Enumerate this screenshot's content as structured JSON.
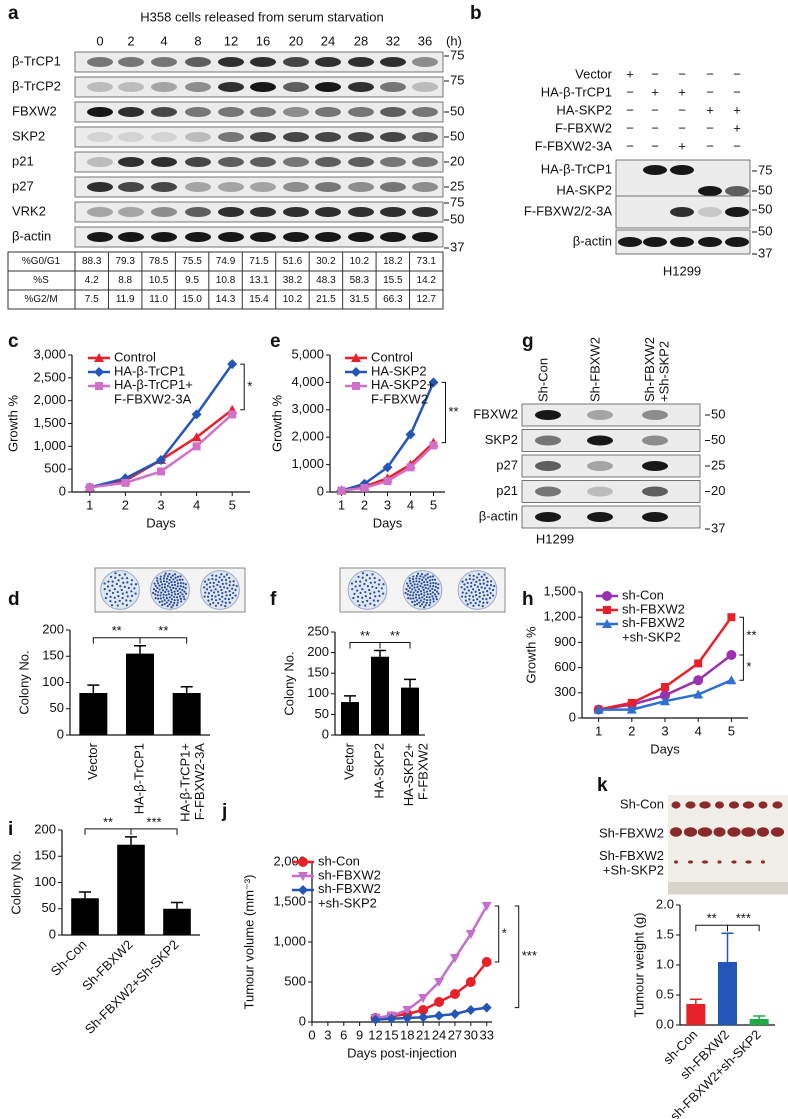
{
  "panel_a": {
    "label": "a",
    "title": "H358 cells released from serum starvation",
    "unit": "(h)",
    "timepoints": [
      "0",
      "2",
      "4",
      "8",
      "12",
      "16",
      "20",
      "24",
      "28",
      "32",
      "36"
    ],
    "blots": [
      {
        "name": "β-TrCP1",
        "markers": [
          "75"
        ]
      },
      {
        "name": "β-TrCP2",
        "markers": [
          "75"
        ]
      },
      {
        "name": "FBXW2",
        "markers": [
          "50"
        ]
      },
      {
        "name": "SKP2",
        "markers": [
          "50"
        ]
      },
      {
        "name": "p21",
        "markers": [
          "20"
        ]
      },
      {
        "name": "p27",
        "markers": [
          "25"
        ]
      },
      {
        "name": "VRK2",
        "markers": [
          "75",
          "50"
        ]
      },
      {
        "name": "β-actin",
        "markers": [
          "37"
        ]
      }
    ],
    "table": [
      {
        "name": "%G0/G1",
        "cells": [
          "88.3",
          "79.3",
          "78.5",
          "75.5",
          "74.9",
          "71.5",
          "51.6",
          "30.2",
          "10.2",
          "18.2",
          "73.1"
        ]
      },
      {
        "name": "%S",
        "cells": [
          "4.2",
          "8.8",
          "10.5",
          "9.5",
          "10.8",
          "13.1",
          "38.2",
          "48.3",
          "58.3",
          "15.5",
          "14.2"
        ]
      },
      {
        "name": "%G2/M",
        "cells": [
          "7.5",
          "11.9",
          "11.0",
          "15.0",
          "14.3",
          "15.4",
          "10.2",
          "21.5",
          "31.5",
          "66.3",
          "12.7"
        ]
      }
    ]
  },
  "panel_b": {
    "label": "b",
    "conditions": [
      {
        "name": "Vector",
        "signs": [
          "+",
          "−",
          "−",
          "−",
          "−"
        ]
      },
      {
        "name": "HA-β-TrCP1",
        "signs": [
          "−",
          "+",
          "+",
          "−",
          "−"
        ]
      },
      {
        "name": "HA-SKP2",
        "signs": [
          "−",
          "−",
          "−",
          "+",
          "+"
        ]
      },
      {
        "name": "F-FBXW2",
        "signs": [
          "−",
          "−",
          "−",
          "−",
          "+"
        ]
      },
      {
        "name": "F-FBXW2-3A",
        "signs": [
          "−",
          "−",
          "+",
          "−",
          "−"
        ]
      }
    ],
    "blots": [
      {
        "labels": [
          "HA-β-TrCP1",
          "HA-SKP2"
        ],
        "markers": [
          "75",
          "50"
        ]
      },
      {
        "labels": [
          "F-FBXW2/2-3A"
        ],
        "markers": [
          "50"
        ]
      },
      {
        "labels": [
          "β-actin"
        ],
        "markers": [
          "50",
          "37"
        ]
      }
    ],
    "cell_line": "H1299"
  },
  "panel_g": {
    "label": "g",
    "lanes": [
      "Sh-Con",
      "Sh-FBXW2",
      "Sh-FBXW2\n+Sh-SKP2"
    ],
    "blots": [
      {
        "name": "FBXW2",
        "marker": "50"
      },
      {
        "name": "SKP2",
        "marker": "50"
      },
      {
        "name": "p27",
        "marker": "25"
      },
      {
        "name": "p21",
        "marker": "20"
      },
      {
        "name": "β-actin",
        "marker": "37"
      }
    ],
    "cell_line": "H1299"
  },
  "panel_k_photo": {
    "rows": [
      "Sh-Con",
      "Sh-FBXW2",
      "Sh-FBXW2\n+Sh-SKP2"
    ]
  },
  "chart_data": [
    {
      "panel": "c",
      "type": "line",
      "x": [
        1,
        2,
        3,
        4,
        5
      ],
      "xlim": [
        0.5,
        5.5
      ],
      "xticks": [
        1,
        2,
        3,
        4,
        5
      ],
      "ylim": [
        0,
        3000
      ],
      "yticks": [
        0,
        500,
        {
          "value": 1000,
          "label": "1,000"
        },
        {
          "value": 1500,
          "label": "1,500"
        },
        {
          "value": 2000,
          "label": "2,000"
        },
        {
          "value": 2500,
          "label": "2,500"
        },
        {
          "value": 3000,
          "label": "3,000"
        }
      ],
      "xlabel": "Days",
      "ylabel": "Growth %",
      "legend": "upper left",
      "series": [
        {
          "name": "Control",
          "color": "#e8202a",
          "marker": "triangle",
          "values": [
            100,
            250,
            700,
            1200,
            1800
          ]
        },
        {
          "name": "HA-β-TrCP1",
          "color": "#2456b8",
          "marker": "diamond",
          "values": [
            100,
            300,
            700,
            1700,
            2800
          ]
        },
        {
          "name": "HA-β-TrCP1+\nF-FBXW2-3A",
          "color": "#d070c8",
          "marker": "square",
          "values": [
            100,
            200,
            450,
            1000,
            1700
          ]
        }
      ],
      "annotations": [
        "*"
      ]
    },
    {
      "panel": "e",
      "type": "line",
      "x": [
        1,
        2,
        3,
        4,
        5
      ],
      "xlim": [
        0.5,
        5.5
      ],
      "xticks": [
        1,
        2,
        3,
        4,
        5
      ],
      "ylim": [
        0,
        5000
      ],
      "yticks": [
        0,
        {
          "value": 1000,
          "label": "1,000"
        },
        {
          "value": 2000,
          "label": "2,000"
        },
        {
          "value": 3000,
          "label": "3,000"
        },
        {
          "value": 4000,
          "label": "4,000"
        },
        {
          "value": 5000,
          "label": "5,000"
        }
      ],
      "xlabel": "Days",
      "ylabel": "Growth %",
      "legend": "upper left",
      "series": [
        {
          "name": "Control",
          "color": "#e8202a",
          "marker": "triangle",
          "values": [
            50,
            200,
            500,
            1000,
            1800
          ]
        },
        {
          "name": "HA-SKP2",
          "color": "#2456b8",
          "marker": "diamond",
          "values": [
            50,
            300,
            900,
            2100,
            4000
          ]
        },
        {
          "name": "HA-SKP2+\nF-FBXW2",
          "color": "#d070c8",
          "marker": "square",
          "values": [
            50,
            150,
            400,
            900,
            1700
          ]
        }
      ],
      "annotations": [
        "**"
      ]
    },
    {
      "panel": "d",
      "type": "bar",
      "categories": [
        "Vector",
        "HA-β-TrCP1",
        "HA-β-TrCP1+\nF-FBXW2-3A"
      ],
      "values": [
        80,
        155,
        80
      ],
      "errors": [
        15,
        15,
        12
      ],
      "color": "#000000",
      "ylim": [
        0,
        200
      ],
      "yticks": [
        0,
        50,
        100,
        150,
        200
      ],
      "ylabel": "Colony No.",
      "annotations": [
        "**",
        "**"
      ]
    },
    {
      "panel": "f",
      "type": "bar",
      "categories": [
        "Vector",
        "HA-SKP2",
        "HA-SKP2+\nF-FBXW2"
      ],
      "values": [
        80,
        190,
        115
      ],
      "errors": [
        15,
        15,
        20
      ],
      "color": "#000000",
      "ylim": [
        0,
        250
      ],
      "yticks": [
        0,
        50,
        100,
        150,
        200,
        250
      ],
      "ylabel": "Colony No.",
      "annotations": [
        "**",
        "**"
      ]
    },
    {
      "panel": "h",
      "type": "line",
      "x": [
        1,
        2,
        3,
        4,
        5
      ],
      "xlim": [
        0.5,
        5.5
      ],
      "xticks": [
        1,
        2,
        3,
        4,
        5
      ],
      "ylim": [
        0,
        1500
      ],
      "yticks": [
        0,
        300,
        600,
        900,
        {
          "value": 1200,
          "label": "1,200"
        },
        {
          "value": 1500,
          "label": "1,500"
        }
      ],
      "xlabel": "Days",
      "ylabel": "Growth %",
      "legend": "upper left",
      "series": [
        {
          "name": "sh-Con",
          "color": "#9b30b0",
          "marker": "circle",
          "values": [
            100,
            160,
            270,
            450,
            750
          ]
        },
        {
          "name": "sh-FBXW2",
          "color": "#e8202a",
          "marker": "square",
          "values": [
            100,
            180,
            370,
            650,
            1200
          ]
        },
        {
          "name": "sh-FBXW2\n+sh-SKP2",
          "color": "#2e6fd0",
          "marker": "triangle",
          "values": [
            100,
            100,
            200,
            280,
            450
          ]
        }
      ],
      "annotations": [
        "**",
        "*"
      ]
    },
    {
      "panel": "i",
      "type": "bar",
      "categories": [
        "Sh-Con",
        "Sh-FBXW2",
        "Sh-FBXW2+Sh-SKP2"
      ],
      "values": [
        70,
        172,
        50
      ],
      "errors": [
        12,
        15,
        12
      ],
      "color": "#000000",
      "ylim": [
        0,
        200
      ],
      "yticks": [
        0,
        50,
        100,
        150,
        200
      ],
      "ylabel": "Colony No.",
      "annotations": [
        "**",
        "***"
      ]
    },
    {
      "panel": "j",
      "type": "line",
      "x": [
        12,
        15,
        18,
        21,
        24,
        27,
        30,
        33
      ],
      "xlim": [
        0,
        34
      ],
      "xticks": [
        0,
        3,
        6,
        9,
        12,
        15,
        18,
        21,
        24,
        27,
        30,
        33
      ],
      "ylim": [
        0,
        2000
      ],
      "yticks": [
        0,
        500,
        {
          "value": 1000,
          "label": "1,000"
        },
        {
          "value": 1500,
          "label": "1,500"
        },
        {
          "value": 2000,
          "label": "2,000"
        }
      ],
      "xlabel": "Days post-injection",
      "ylabel": "Tumour volume (mm⁻³)",
      "legend": "upper left",
      "series": [
        {
          "name": "sh-Con",
          "color": "#e8202a",
          "marker": "circle",
          "values": [
            50,
            70,
            100,
            150,
            250,
            350,
            500,
            750
          ]
        },
        {
          "name": "sh-FBXW2",
          "color": "#c46fd0",
          "marker": "triangle-down",
          "values": [
            50,
            80,
            150,
            300,
            500,
            800,
            1100,
            1450
          ]
        },
        {
          "name": "sh-FBXW2\n+sh-SKP2",
          "color": "#2456b8",
          "marker": "diamond",
          "values": [
            30,
            40,
            50,
            60,
            80,
            100,
            150,
            180
          ]
        }
      ],
      "annotations": [
        "*",
        "***"
      ]
    },
    {
      "panel": "k",
      "type": "bar",
      "categories": [
        "sh-Con",
        "sh-FBXW2",
        "sh-FBXW2+sh-SKP2"
      ],
      "values": [
        0.35,
        1.05,
        0.1
      ],
      "errors": [
        0.08,
        0.48,
        0.05
      ],
      "colors": [
        "#e8202a",
        "#2456b8",
        "#22aa44"
      ],
      "ylim": [
        0,
        2.0
      ],
      "yticks": [
        {
          "value": 0,
          "label": "0.0"
        },
        {
          "value": 0.5,
          "label": "0.5"
        },
        {
          "value": 1.0,
          "label": "1.0"
        },
        {
          "value": 1.5,
          "label": "1.5"
        },
        {
          "value": 2.0,
          "label": "2.0"
        }
      ],
      "ylabel": "Tumour weight (g)",
      "annotations": [
        "**",
        "***"
      ]
    }
  ]
}
